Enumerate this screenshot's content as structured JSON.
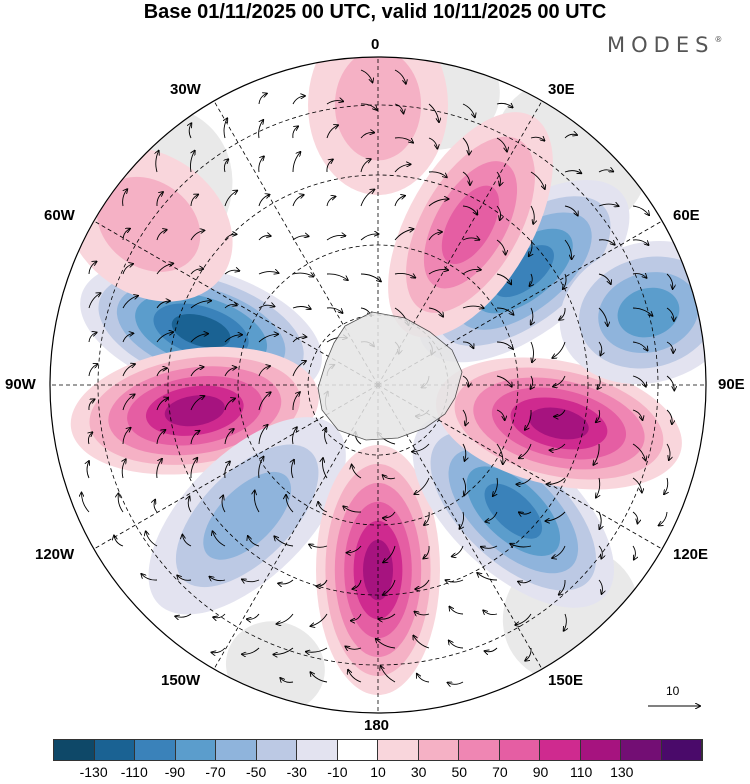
{
  "title": "Base 01/11/2025 00 UTC, valid 10/11/2025 00 UTC",
  "brand": "MODES",
  "brand_mark": "®",
  "longitude_labels": [
    "0",
    "30E",
    "60E",
    "90E",
    "120E",
    "150E",
    "180",
    "150W",
    "120W",
    "90W",
    "60W",
    "30W"
  ],
  "vector_reference": "10",
  "colorbar": {
    "colors": [
      "#0e4868",
      "#1a6293",
      "#3a82ba",
      "#5b9dcc",
      "#8fb4dc",
      "#bcc9e4",
      "#e3e3f0",
      "#ffffff",
      "#f9d6dc",
      "#f5b1c5",
      "#ef86b3",
      "#e55ea3",
      "#cf2a8f",
      "#a6137f",
      "#730e74",
      "#4a0a6a"
    ],
    "tick_labels": [
      "-130",
      "-110",
      "-90",
      "-70",
      "-50",
      "-30",
      "-10",
      "10",
      "30",
      "50",
      "70",
      "90",
      "110",
      "130"
    ]
  },
  "chart_data": {
    "type": "polar stereographic map (Southern Hemisphere)",
    "field": "shaded anomaly with streamline vectors",
    "levels": [
      -130,
      -110,
      -90,
      -70,
      -50,
      -30,
      -10,
      10,
      30,
      50,
      70,
      90,
      110,
      130
    ],
    "centers": [
      {
        "lon": -73,
        "lat_ring": "mid",
        "value": -120,
        "sign": "negative"
      },
      {
        "lon": -98,
        "lat_ring": "mid",
        "value": 120,
        "sign": "positive"
      },
      {
        "lon": -135,
        "lat_ring": "mid",
        "value": -60,
        "sign": "negative"
      },
      {
        "lon": 180,
        "lat_ring": "mid",
        "value": 110,
        "sign": "positive"
      },
      {
        "lon": 133,
        "lat_ring": "mid",
        "value": -100,
        "sign": "negative"
      },
      {
        "lon": 102,
        "lat_ring": "mid",
        "value": 110,
        "sign": "positive"
      },
      {
        "lon": 52,
        "lat_ring": "mid",
        "value": -90,
        "sign": "negative"
      },
      {
        "lon": 30,
        "lat_ring": "mid",
        "value": 70,
        "sign": "positive"
      },
      {
        "lon": 0,
        "lat_ring": "outer",
        "value": 30,
        "sign": "positive"
      },
      {
        "lon": -55,
        "lat_ring": "outer",
        "value": 30,
        "sign": "positive"
      },
      {
        "lon": 75,
        "lat_ring": "outer",
        "value": -70,
        "sign": "negative"
      }
    ]
  }
}
